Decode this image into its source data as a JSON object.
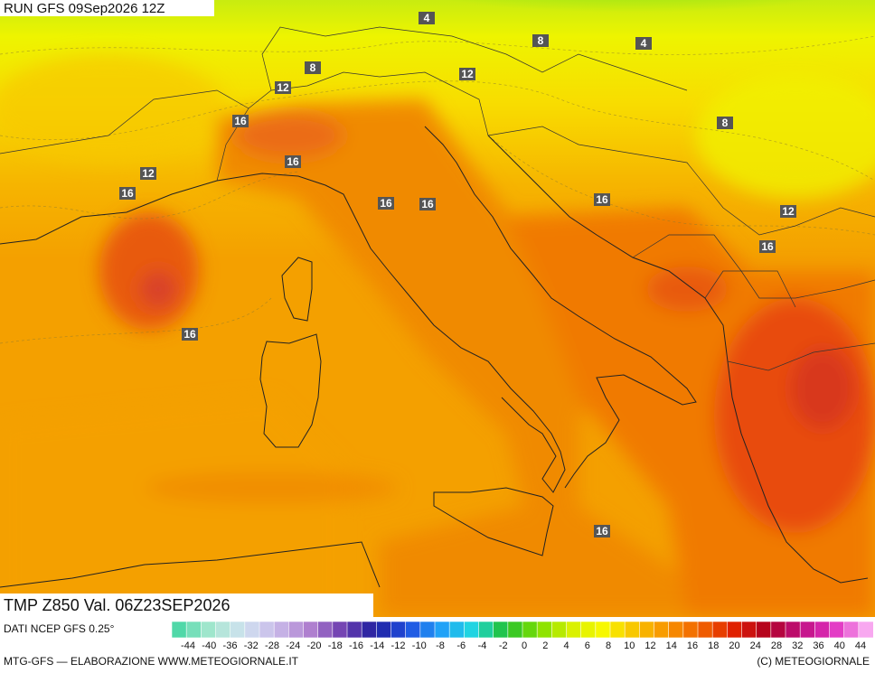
{
  "header": {
    "run": "RUN GFS 09Sep2026 12Z"
  },
  "map": {
    "contour_labels": [
      4,
      8,
      4,
      8,
      12,
      12,
      8,
      16,
      16,
      12,
      16,
      16,
      16,
      16,
      12,
      16,
      16,
      16
    ]
  },
  "footer": {
    "field": "TMP Z850 Val. 06Z23SEP2026",
    "source": "DATI NCEP GFS 0.25°",
    "credit": "MTG-GFS — ELABORAZIONE WWW.METEOGIORNALE.IT",
    "copyright": "(C) METEOGIORNALE"
  },
  "colorbar": {
    "ticks": [
      -44,
      -40,
      -36,
      -32,
      -28,
      -24,
      -20,
      -18,
      -16,
      -14,
      -12,
      -10,
      -8,
      -6,
      -4,
      -2,
      0,
      2,
      4,
      6,
      8,
      10,
      12,
      14,
      16,
      18,
      20,
      24,
      28,
      32,
      36,
      40,
      44
    ]
  }
}
